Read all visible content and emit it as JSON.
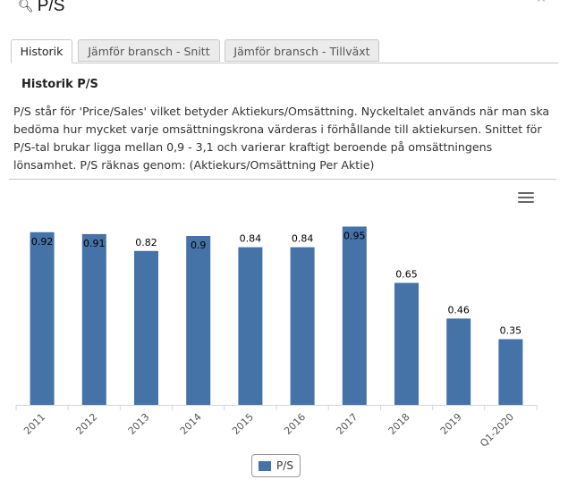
{
  "header": {
    "title": "P/S",
    "search_icon": "search-icon"
  },
  "tabs": [
    {
      "label": "Historik",
      "active": true
    },
    {
      "label": "Jämför bransch - Snitt",
      "active": false
    },
    {
      "label": "Jämför bransch - Tillväxt",
      "active": false
    }
  ],
  "section": {
    "heading": "Historik P/S",
    "description": "P/S står för 'Price/Sales' vilket betyder Aktiekurs/Omsättning. Nyckeltalet används när man ska bedöma hur mycket varje omsättningskrona värderas i förhållande till aktiekursen. Snittet för P/S-tal brukar ligga mellan 0,9 - 3,1 och varierar kraftigt beroende på omsättningens lönsamhet. P/S räknas genom: (Aktiekurs/Omsättning Per Aktie)"
  },
  "chart_menu_icon": "hamburger-menu-icon",
  "chart_data": {
    "type": "bar",
    "categories": [
      "2011",
      "2012",
      "2013",
      "2014",
      "2015",
      "2016",
      "2017",
      "2018",
      "2019",
      "Q1-2020"
    ],
    "series": [
      {
        "name": "P/S",
        "values": [
          0.92,
          0.91,
          0.82,
          0.9,
          0.84,
          0.84,
          0.95,
          0.65,
          0.46,
          0.35
        ]
      }
    ],
    "data_labels": [
      "0.92",
      "0.91",
      "0.82",
      "0.9",
      "0.84",
      "0.84",
      "0.95",
      "0.65",
      "0.46",
      "0.35"
    ],
    "ylim": [
      0,
      1
    ],
    "grid": false,
    "legend_position": "bottom-center",
    "color": "#4572a7"
  }
}
